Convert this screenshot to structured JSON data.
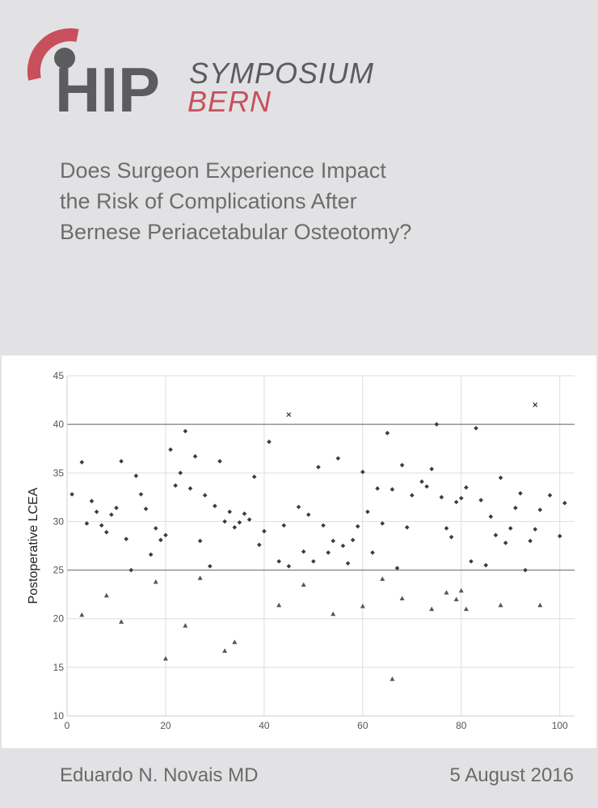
{
  "logo": {
    "word": "HIP",
    "line1": "SYMPOSIUM",
    "line2": "BERN",
    "accent_color": "#c8505c",
    "gray_color": "#5c5c5e"
  },
  "title_lines": [
    "Does Surgeon Experience Impact",
    "the Risk of Complications After",
    "Bernese Periacetabular Osteotomy?"
  ],
  "footer": {
    "author": "Eduardo N. Novais MD",
    "date": "5 August 2016"
  },
  "chart_data": {
    "type": "scatter",
    "xlabel": "",
    "ylabel": "Postoperative LCEA",
    "xlim": [
      0,
      103
    ],
    "ylim": [
      10,
      45
    ],
    "x_ticks": [
      0,
      20,
      40,
      60,
      80,
      100
    ],
    "y_ticks": [
      10,
      15,
      20,
      25,
      30,
      35,
      40,
      45
    ],
    "reference_lines": [
      25,
      40
    ],
    "grid": true,
    "series": [
      {
        "marker": "diamond",
        "points": [
          [
            1,
            32.8
          ],
          [
            3,
            36.1
          ],
          [
            4,
            29.8
          ],
          [
            5,
            32.1
          ],
          [
            6,
            31.0
          ],
          [
            7,
            29.6
          ],
          [
            8,
            28.9
          ],
          [
            9,
            30.7
          ],
          [
            10,
            31.4
          ],
          [
            11,
            36.2
          ],
          [
            12,
            28.2
          ],
          [
            13,
            25.0
          ],
          [
            14,
            34.7
          ],
          [
            15,
            32.8
          ],
          [
            16,
            31.3
          ],
          [
            17,
            26.6
          ],
          [
            18,
            29.3
          ],
          [
            19,
            28.1
          ],
          [
            20,
            28.6
          ],
          [
            21,
            37.4
          ],
          [
            22,
            33.7
          ],
          [
            23,
            35.0
          ],
          [
            24,
            39.3
          ],
          [
            25,
            33.4
          ],
          [
            26,
            36.7
          ],
          [
            27,
            28.0
          ],
          [
            28,
            32.7
          ],
          [
            29,
            25.4
          ],
          [
            30,
            31.6
          ],
          [
            31,
            36.2
          ],
          [
            32,
            30.0
          ],
          [
            33,
            31.0
          ],
          [
            34,
            29.4
          ],
          [
            35,
            29.9
          ],
          [
            36,
            30.8
          ],
          [
            37,
            30.2
          ],
          [
            38,
            34.6
          ],
          [
            39,
            27.6
          ],
          [
            40,
            29.0
          ],
          [
            41,
            38.2
          ],
          [
            43,
            25.9
          ],
          [
            44,
            29.6
          ],
          [
            45,
            25.4
          ],
          [
            47,
            31.5
          ],
          [
            48,
            26.9
          ],
          [
            49,
            30.7
          ],
          [
            50,
            25.9
          ],
          [
            51,
            35.6
          ],
          [
            52,
            29.6
          ],
          [
            53,
            26.8
          ],
          [
            54,
            28.0
          ],
          [
            55,
            36.5
          ],
          [
            56,
            27.5
          ],
          [
            57,
            25.7
          ],
          [
            58,
            28.1
          ],
          [
            59,
            29.5
          ],
          [
            60,
            35.1
          ],
          [
            61,
            31.0
          ],
          [
            62,
            26.8
          ],
          [
            63,
            33.4
          ],
          [
            64,
            29.8
          ],
          [
            65,
            39.1
          ],
          [
            66,
            33.3
          ],
          [
            67,
            25.2
          ],
          [
            68,
            35.8
          ],
          [
            69,
            29.4
          ],
          [
            70,
            32.7
          ],
          [
            72,
            34.1
          ],
          [
            73,
            33.6
          ],
          [
            74,
            35.4
          ],
          [
            75,
            40.0
          ],
          [
            76,
            32.5
          ],
          [
            77,
            29.3
          ],
          [
            78,
            28.4
          ],
          [
            79,
            32.0
          ],
          [
            80,
            32.4
          ],
          [
            81,
            33.5
          ],
          [
            82,
            25.9
          ],
          [
            83,
            39.6
          ],
          [
            84,
            32.2
          ],
          [
            85,
            25.5
          ],
          [
            86,
            30.5
          ],
          [
            87,
            28.6
          ],
          [
            88,
            34.5
          ],
          [
            89,
            27.8
          ],
          [
            90,
            29.3
          ],
          [
            91,
            31.4
          ],
          [
            92,
            32.9
          ],
          [
            93,
            25.0
          ],
          [
            94,
            28.0
          ],
          [
            95,
            29.2
          ],
          [
            96,
            31.2
          ],
          [
            98,
            32.7
          ],
          [
            100,
            28.5
          ],
          [
            101,
            31.9
          ]
        ]
      },
      {
        "marker": "triangle",
        "points": [
          [
            3,
            20.4
          ],
          [
            8,
            22.4
          ],
          [
            11,
            19.7
          ],
          [
            18,
            23.8
          ],
          [
            20,
            15.9
          ],
          [
            24,
            19.3
          ],
          [
            27,
            24.2
          ],
          [
            32,
            16.7
          ],
          [
            34,
            17.6
          ],
          [
            43,
            21.4
          ],
          [
            48,
            23.5
          ],
          [
            54,
            20.5
          ],
          [
            60,
            21.3
          ],
          [
            64,
            24.1
          ],
          [
            66,
            13.8
          ],
          [
            68,
            22.1
          ],
          [
            74,
            21.0
          ],
          [
            77,
            22.7
          ],
          [
            79,
            22.0
          ],
          [
            80,
            22.9
          ],
          [
            81,
            21.0
          ],
          [
            88,
            21.4
          ],
          [
            96,
            21.4
          ]
        ]
      },
      {
        "marker": "x",
        "points": [
          [
            45,
            41.0
          ],
          [
            95,
            42.0
          ]
        ]
      }
    ]
  }
}
